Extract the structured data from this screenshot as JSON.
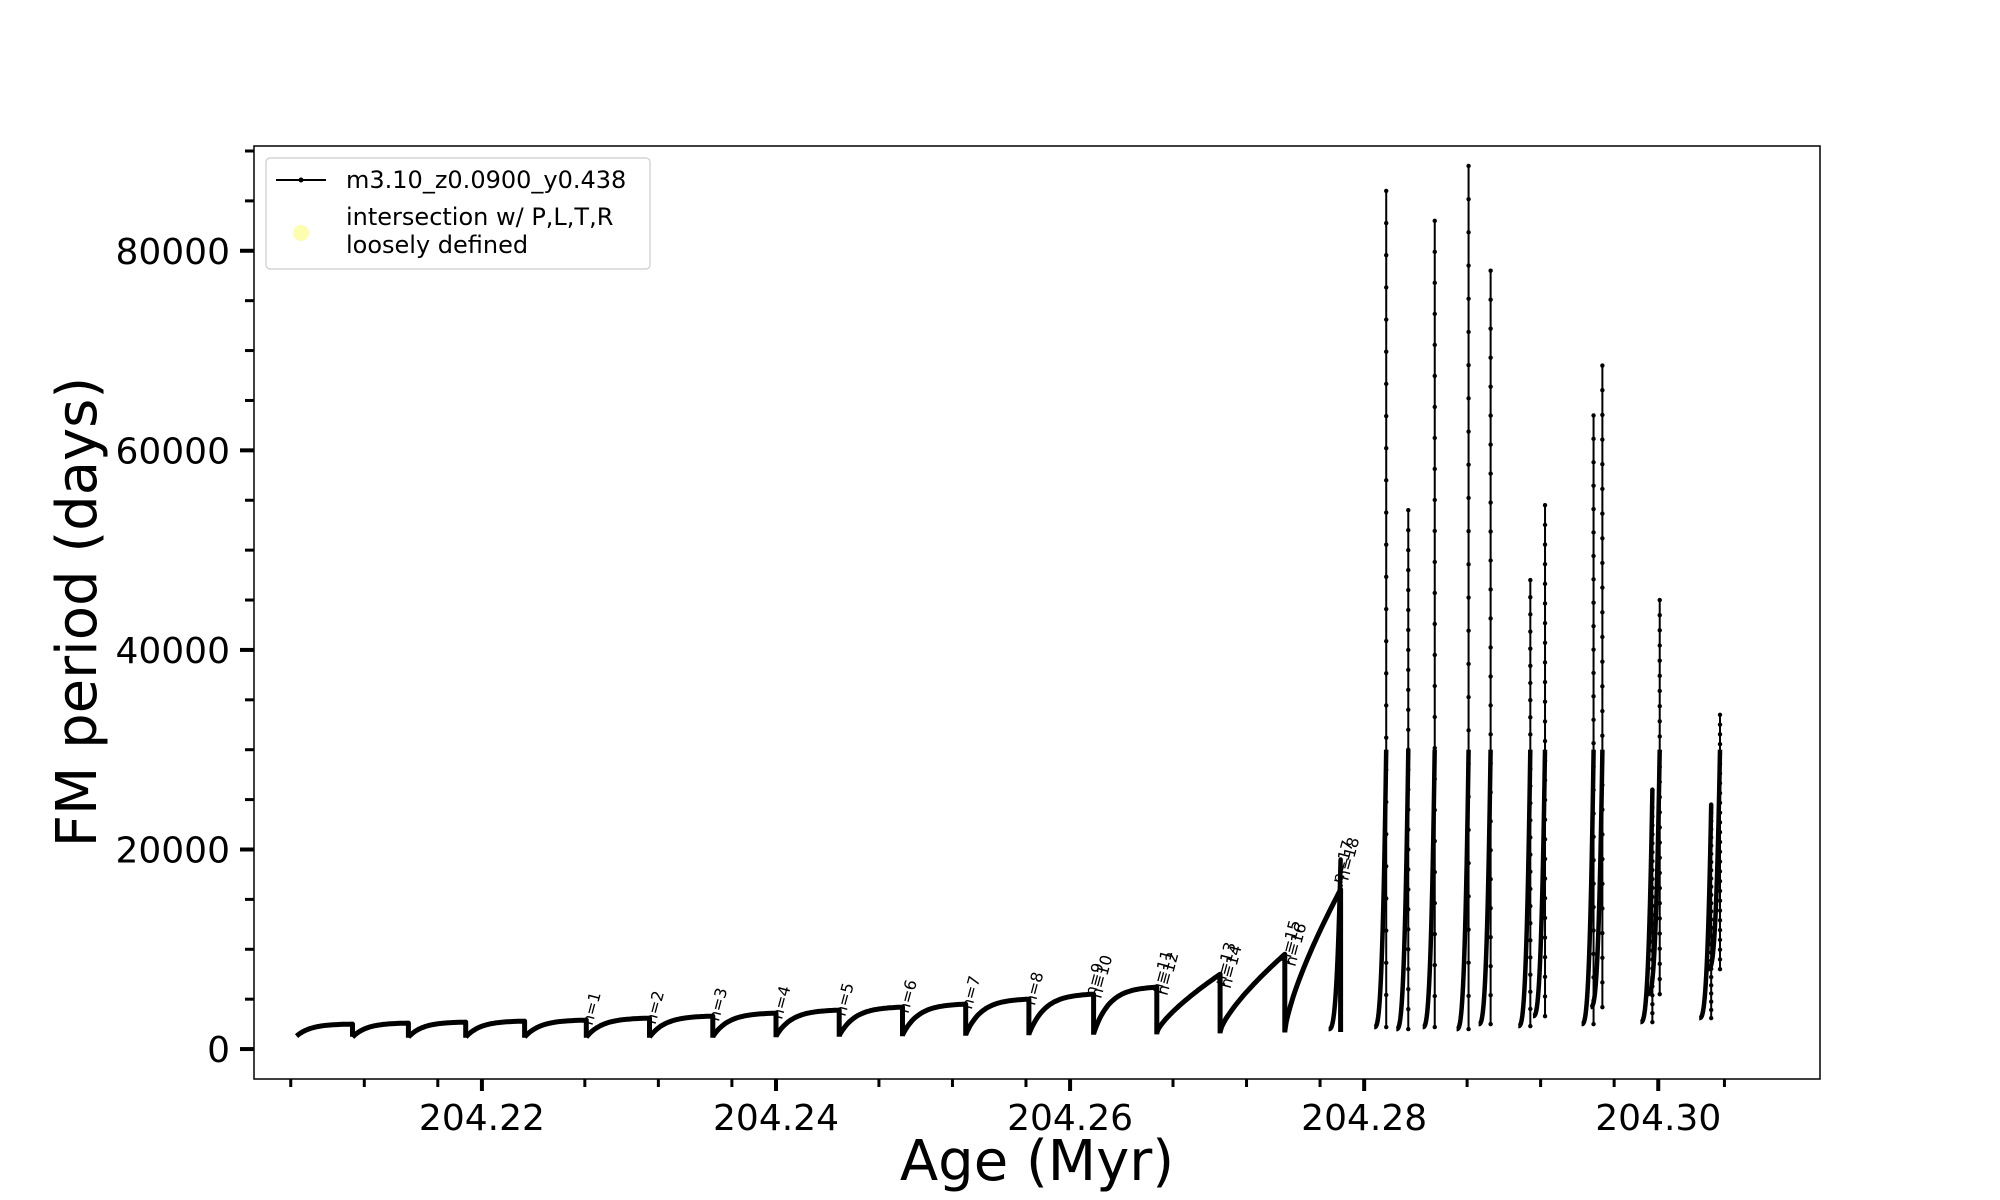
{
  "chart_data": {
    "type": "line",
    "xlabel": "Age (Myr)",
    "ylabel": "FM period (days)",
    "xlim": [
      204.2045,
      204.311
    ],
    "ylim": [
      -3000,
      90500
    ],
    "xticks_major": [
      204.22,
      204.24,
      204.26,
      204.28,
      204.3
    ],
    "xtick_labels": [
      "204.22",
      "204.24",
      "204.26",
      "204.28",
      "204.30"
    ],
    "xticks_minor": [
      204.207,
      204.212,
      204.217,
      204.227,
      204.232,
      204.237,
      204.247,
      204.252,
      204.257,
      204.267,
      204.272,
      204.277,
      204.287,
      204.292,
      204.297,
      204.3045
    ],
    "yticks_major": [
      0,
      20000,
      40000,
      60000,
      80000
    ],
    "ytick_labels": [
      "0",
      "20000",
      "40000",
      "60000",
      "80000"
    ],
    "yticks_minor": [
      5000,
      10000,
      15000,
      25000,
      30000,
      35000,
      45000,
      50000,
      55000,
      65000,
      70000,
      75000,
      85000,
      90000
    ],
    "grid": false,
    "legend_position": "top-left",
    "legend": [
      {
        "label": "m3.10_z0.0900_y0.438",
        "marker": "line-dot",
        "color": "#000000"
      },
      {
        "label": "intersection w/ P,L,T,R\nloosely defined",
        "marker": "circle",
        "color": "#fdfdb0"
      }
    ],
    "series": [
      {
        "name": "m3.10_z0.0900_y0.438",
        "color": "#000000",
        "pulses": [
          {
            "start": 204.2074,
            "end": 204.2112,
            "y0": 1300,
            "y1": 2500
          },
          {
            "start": 204.2112,
            "end": 204.215,
            "y0": 1200,
            "y1": 2600
          },
          {
            "start": 204.215,
            "end": 204.2189,
            "y0": 1200,
            "y1": 2700
          },
          {
            "start": 204.2189,
            "end": 204.2229,
            "y0": 1200,
            "y1": 2800
          },
          {
            "start": 204.2229,
            "end": 204.2271,
            "y0": 1200,
            "y1": 2900
          },
          {
            "start": 204.2271,
            "end": 204.2314,
            "y0": 1200,
            "y1": 3100
          },
          {
            "start": 204.2314,
            "end": 204.2357,
            "y0": 1200,
            "y1": 3300
          },
          {
            "start": 204.2357,
            "end": 204.24,
            "y0": 1250,
            "y1": 3600
          },
          {
            "start": 204.24,
            "end": 204.2443,
            "y0": 1300,
            "y1": 3900
          },
          {
            "start": 204.2443,
            "end": 204.2486,
            "y0": 1350,
            "y1": 4200
          },
          {
            "start": 204.2486,
            "end": 204.2529,
            "y0": 1400,
            "y1": 4500
          },
          {
            "start": 204.2529,
            "end": 204.2572,
            "y0": 1450,
            "y1": 5000
          },
          {
            "start": 204.2572,
            "end": 204.2616,
            "y0": 1500,
            "y1": 5500
          },
          {
            "start": 204.2616,
            "end": 204.2659,
            "y0": 1550,
            "y1": 6200
          },
          {
            "start": 204.2659,
            "end": 204.2702,
            "y0": 1650,
            "y1": 7500
          },
          {
            "start": 204.2702,
            "end": 204.2746,
            "y0": 1750,
            "y1": 9500
          },
          {
            "start": 204.2746,
            "end": 204.2784,
            "y0": 1800,
            "y1": 16000
          }
        ],
        "spikes": [
          {
            "x": 204.2784,
            "base": 2000,
            "top": 19000
          },
          {
            "x": 204.2815,
            "base": 2200,
            "top": 86000
          },
          {
            "x": 204.283,
            "base": 2000,
            "top": 54000
          },
          {
            "x": 204.2848,
            "base": 2200,
            "top": 83000
          },
          {
            "x": 204.2871,
            "base": 2000,
            "top": 88500
          },
          {
            "x": 204.2886,
            "base": 2500,
            "top": 78000
          },
          {
            "x": 204.2913,
            "base": 2300,
            "top": 47000
          },
          {
            "x": 204.2923,
            "base": 3300,
            "top": 54500
          },
          {
            "x": 204.2956,
            "base": 2500,
            "top": 63500
          },
          {
            "x": 204.2962,
            "base": 4200,
            "top": 68500
          },
          {
            "x": 204.2996,
            "base": 2700,
            "top": 26000
          },
          {
            "x": 204.3001,
            "base": 5500,
            "top": 45000
          },
          {
            "x": 204.3036,
            "base": 3100,
            "top": 24500
          },
          {
            "x": 204.3042,
            "base": 8000,
            "top": 33500
          }
        ]
      }
    ],
    "annotations": [
      {
        "text": "n=1",
        "x": 204.2275,
        "y": 2300
      },
      {
        "text": "n=2",
        "x": 204.2318,
        "y": 2400
      },
      {
        "text": "n=3",
        "x": 204.2361,
        "y": 2700
      },
      {
        "text": "n=4",
        "x": 204.2404,
        "y": 2900
      },
      {
        "text": "n=5",
        "x": 204.2447,
        "y": 3200
      },
      {
        "text": "n=6",
        "x": 204.249,
        "y": 3500
      },
      {
        "text": "n=7",
        "x": 204.2533,
        "y": 3900
      },
      {
        "text": "n=8",
        "x": 204.2576,
        "y": 4300
      },
      {
        "text": "n=9",
        "x": 204.2617,
        "y": 5200
      },
      {
        "text": "n=10",
        "x": 204.2621,
        "y": 5000
      },
      {
        "text": "n=11",
        "x": 204.2662,
        "y": 5500
      },
      {
        "text": "n=12",
        "x": 204.2666,
        "y": 5300
      },
      {
        "text": "n=13",
        "x": 204.2705,
        "y": 6300
      },
      {
        "text": "n=14",
        "x": 204.2709,
        "y": 6000
      },
      {
        "text": "n=15",
        "x": 204.2749,
        "y": 8500
      },
      {
        "text": "n=16",
        "x": 204.2753,
        "y": 8200
      },
      {
        "text": "n=17",
        "x": 204.2785,
        "y": 16500
      },
      {
        "text": "n=18",
        "x": 204.2789,
        "y": 16800
      }
    ]
  }
}
